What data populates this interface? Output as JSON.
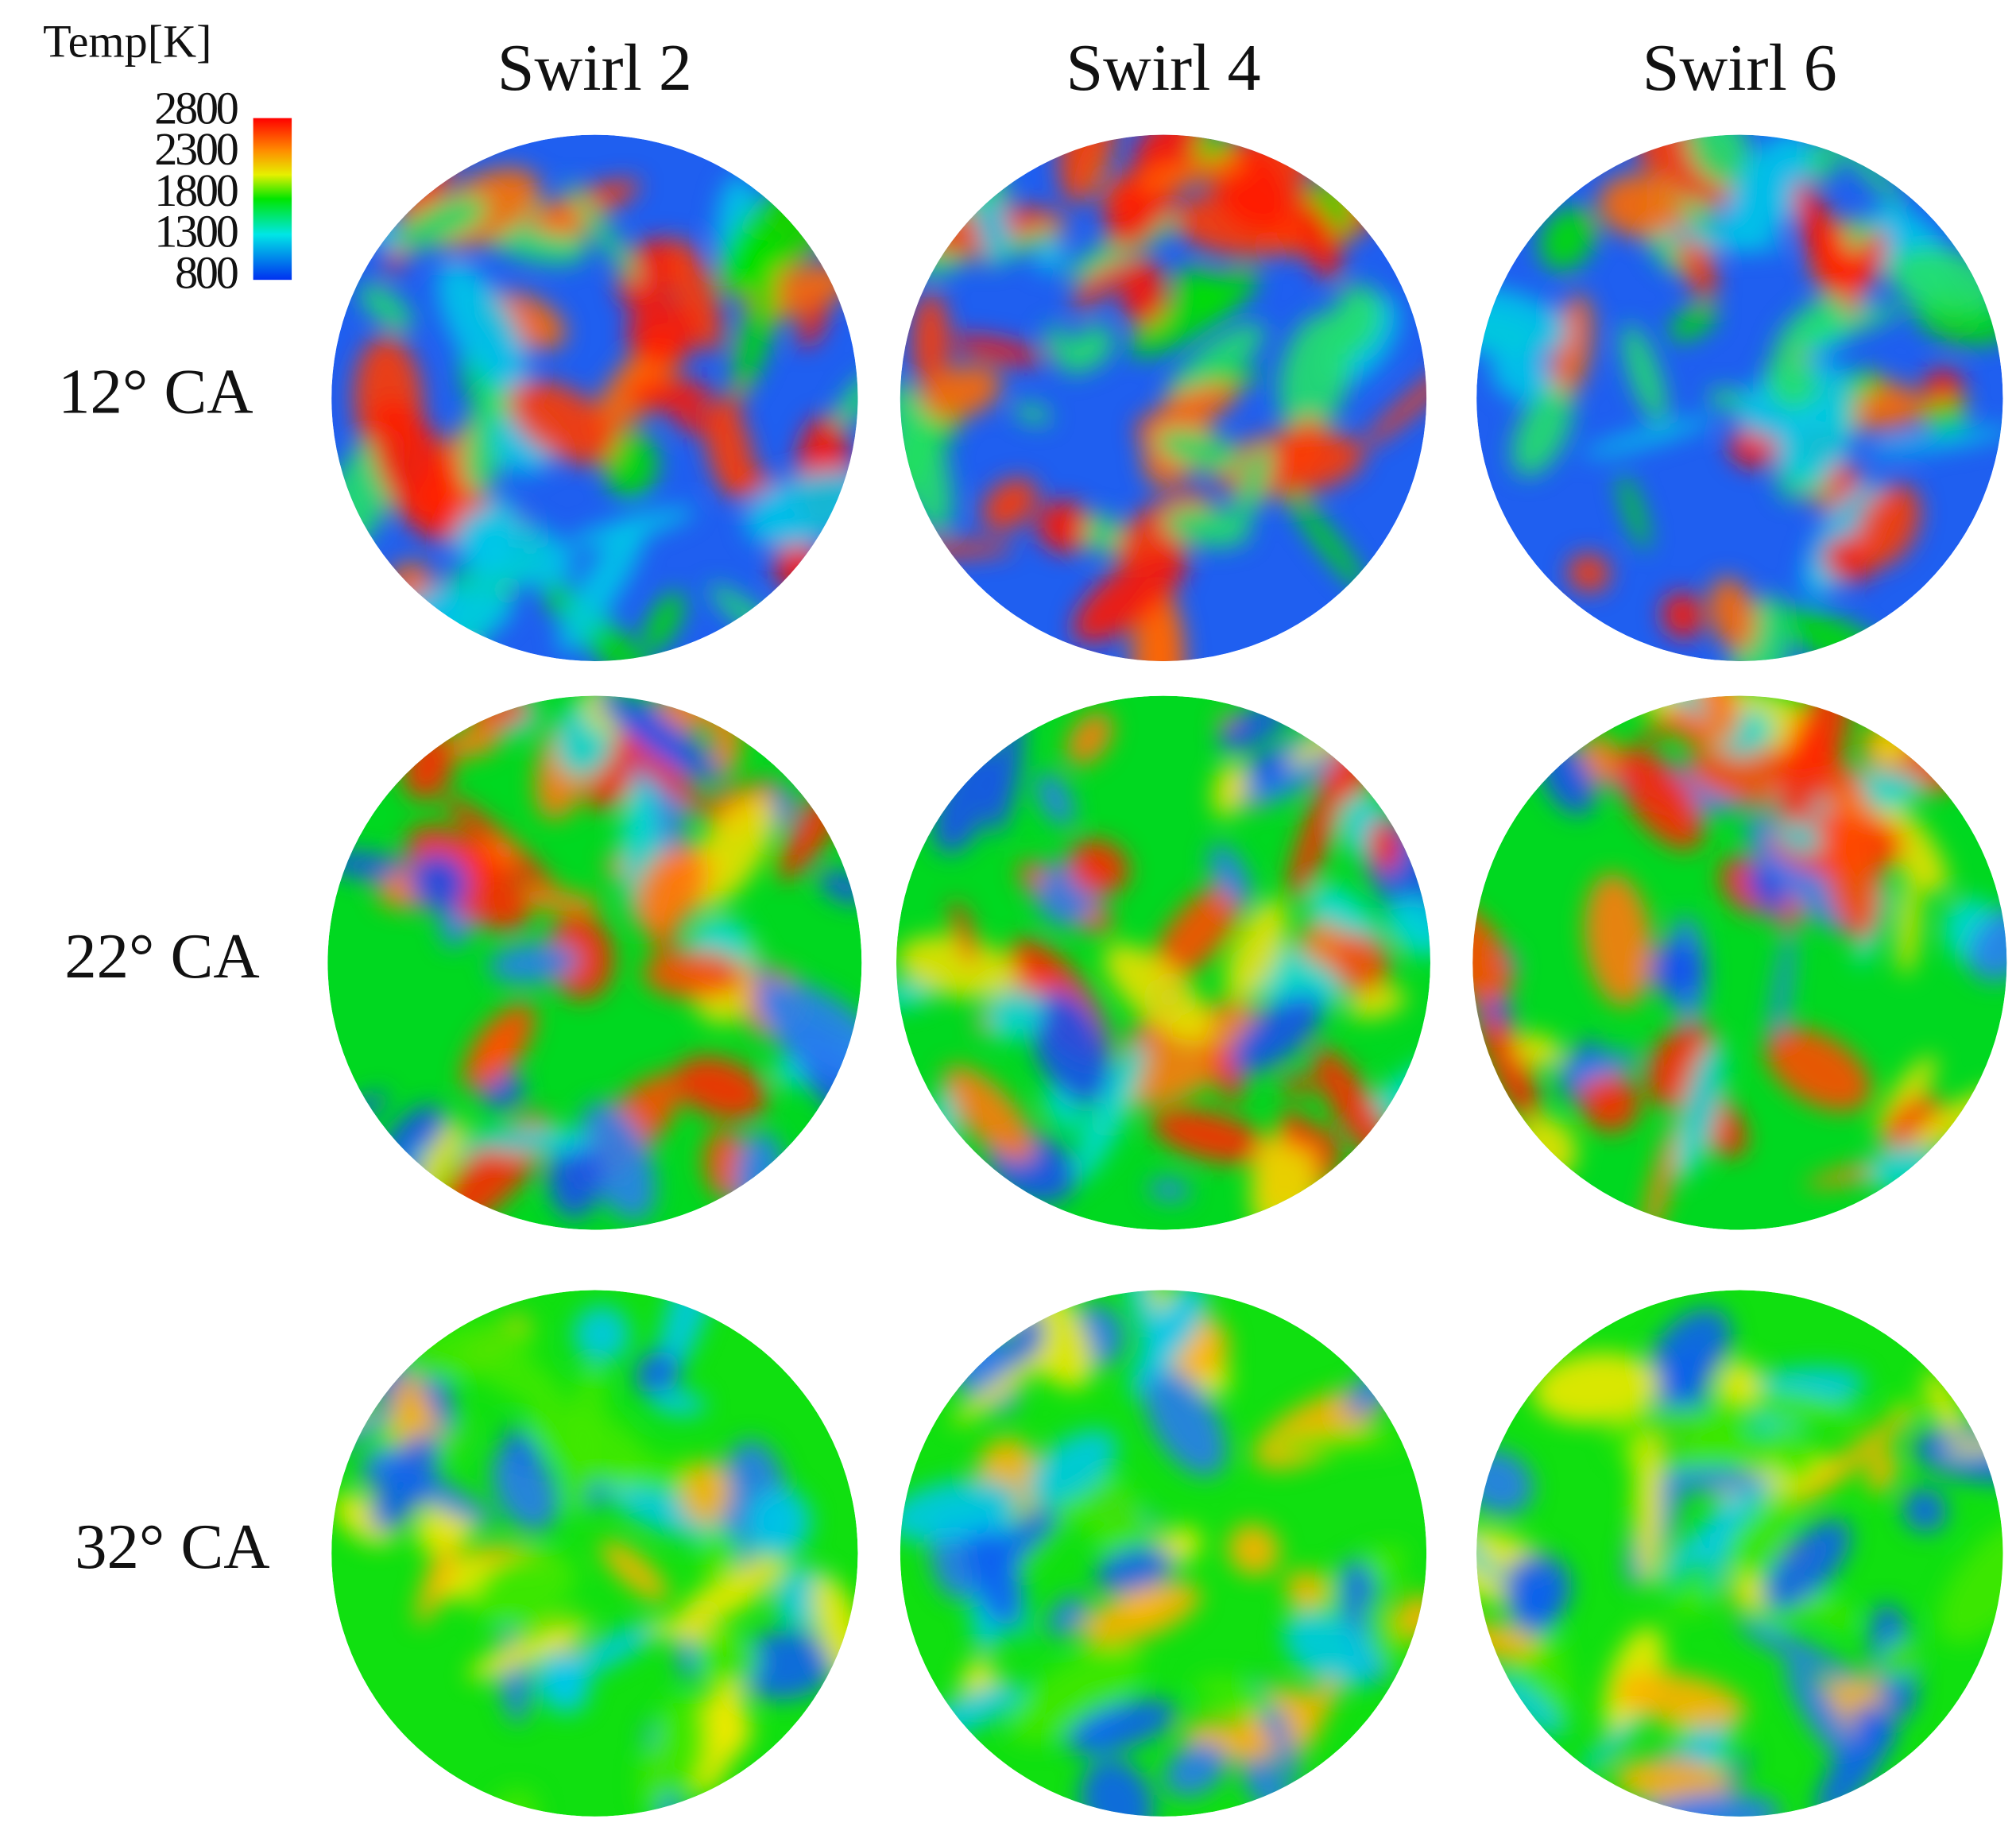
{
  "colorbar": {
    "title": "Temp[K]",
    "ticks": [
      2800,
      2300,
      1800,
      1300,
      800
    ]
  },
  "columns": [
    "Swirl 2",
    "Swirl 4",
    "Swirl 6"
  ],
  "rows": [
    "12° CA",
    "22° CA",
    "32° CA"
  ]
}
